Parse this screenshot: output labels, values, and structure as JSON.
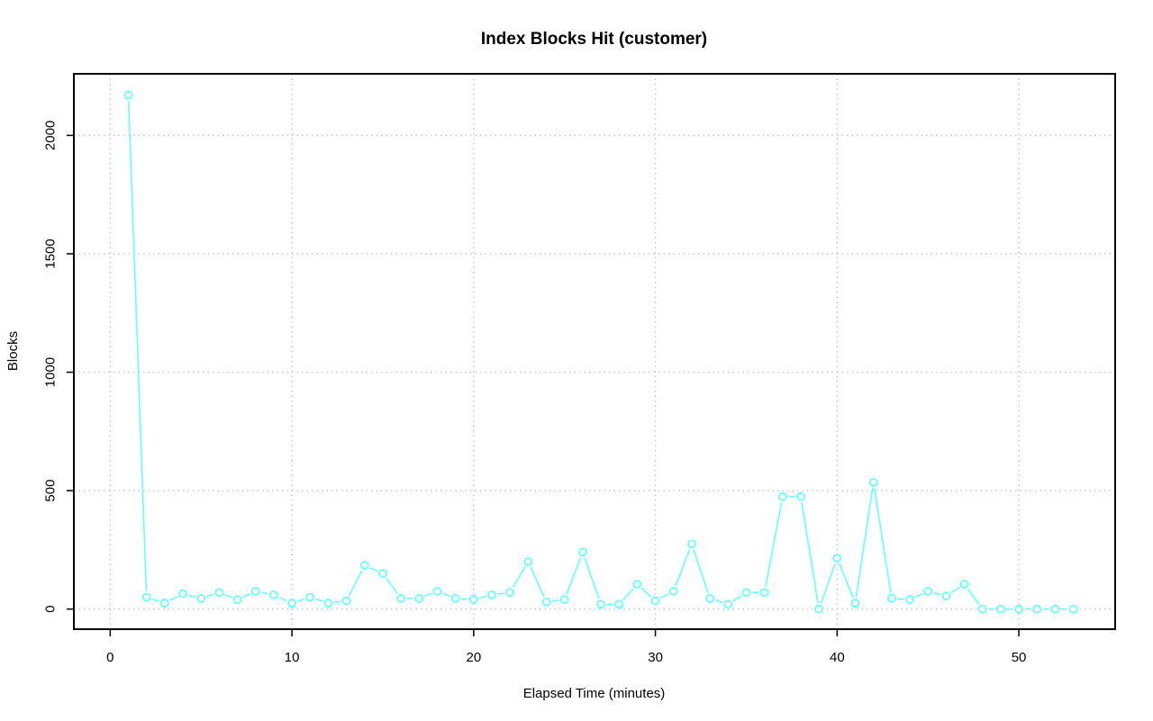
{
  "chart_data": {
    "type": "line",
    "title": "Index Blocks Hit (customer)",
    "xlabel": "Elapsed Time (minutes)",
    "ylabel": "Blocks",
    "xlim": [
      -2,
      55.3
    ],
    "ylim": [
      -85,
      2260
    ],
    "xticks": [
      0,
      10,
      20,
      30,
      40,
      50
    ],
    "yticks": [
      0,
      500,
      1000,
      1500,
      2000
    ],
    "grid": true,
    "legend": "none",
    "series": [
      {
        "color": "#66ffff",
        "x": [
          1,
          2,
          3,
          4,
          5,
          6,
          7,
          8,
          9,
          10,
          11,
          12,
          13,
          14,
          15,
          16,
          17,
          18,
          19,
          20,
          21,
          22,
          23,
          24,
          25,
          26,
          27,
          28,
          29,
          30,
          31,
          32,
          33,
          34,
          35,
          36,
          37,
          38,
          39,
          40,
          41,
          42,
          43,
          44,
          45,
          46,
          47,
          48,
          49,
          50,
          51,
          52,
          53
        ],
        "y": [
          2170,
          50,
          25,
          65,
          45,
          70,
          40,
          75,
          60,
          25,
          50,
          25,
          35,
          185,
          150,
          45,
          45,
          75,
          45,
          40,
          60,
          70,
          200,
          30,
          40,
          240,
          20,
          20,
          105,
          35,
          75,
          275,
          45,
          20,
          70,
          70,
          475,
          475,
          0,
          215,
          25,
          535,
          45,
          40,
          75,
          55,
          105,
          0,
          0,
          0,
          0,
          0,
          0
        ]
      }
    ]
  }
}
